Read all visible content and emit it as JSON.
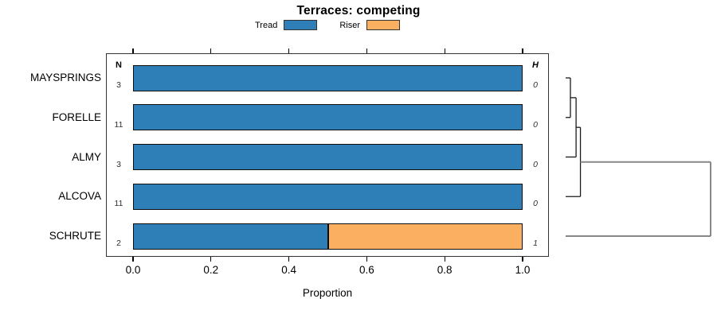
{
  "title": "Terraces: competing",
  "legend": {
    "items": [
      {
        "label": "Tread",
        "color": "#2e7eb8"
      },
      {
        "label": "Riser",
        "color": "#fbaf61"
      }
    ]
  },
  "chart_data": {
    "type": "bar",
    "orientation": "horizontal",
    "stacked": true,
    "title": "Terraces: competing",
    "xlabel": "Proportion",
    "xlim": [
      0,
      1
    ],
    "xticks": [
      0.0,
      0.2,
      0.4,
      0.6,
      0.8,
      1.0
    ],
    "xtick_labels": [
      "0.0",
      "0.2",
      "0.4",
      "0.6",
      "0.8",
      "1.0"
    ],
    "grid": false,
    "legend_position": "top",
    "categories": [
      "MAYSPRINGS",
      "FORELLE",
      "ALMY",
      "ALCOVA",
      "SCHRUTE"
    ],
    "series": [
      {
        "name": "Tread",
        "color": "#2e7eb8",
        "values": [
          1.0,
          1.0,
          1.0,
          1.0,
          0.5
        ]
      },
      {
        "name": "Riser",
        "color": "#fbaf61",
        "values": [
          0.0,
          0.0,
          0.0,
          0.0,
          0.5
        ]
      }
    ],
    "n_column": {
      "header": "N",
      "values": [
        "3",
        "11",
        "3",
        "11",
        "2"
      ]
    },
    "h_column": {
      "header": "H",
      "values": [
        "0",
        "0",
        "0",
        "0",
        "1"
      ]
    },
    "dendrogram": {
      "side": "right",
      "merges": [
        {
          "join": [
            "MAYSPRINGS",
            "FORELLE"
          ],
          "as": "C1",
          "height": 0.033
        },
        {
          "join": [
            "C1",
            "ALMY"
          ],
          "as": "C2",
          "height": 0.072
        },
        {
          "join": [
            "C2",
            "ALCOVA"
          ],
          "as": "C3",
          "height": 0.102
        },
        {
          "join": [
            "C3",
            "SCHRUTE"
          ],
          "as": "C4",
          "height": 1.0
        }
      ]
    }
  }
}
